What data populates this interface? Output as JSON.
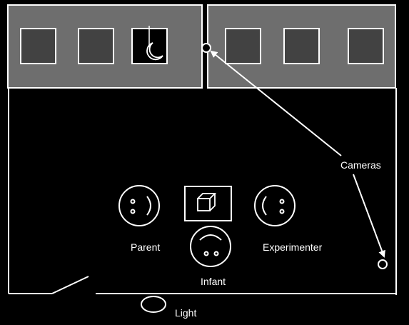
{
  "labels": {
    "cameras": "Cameras",
    "parent": "Parent",
    "infant": "Infant",
    "experimenter": "Experimenter",
    "light": "Light"
  },
  "colors": {
    "background": "#000000",
    "panel": "#6e6e6e",
    "monitor": "#424242",
    "line": "#ffffff"
  },
  "icons": {
    "monitor_with_stimulus": "crescent-moon-icon",
    "table_object": "cube-icon",
    "parent": "face-icon",
    "infant": "face-icon",
    "experimenter": "face-icon",
    "light": "oval-lamp-icon",
    "camera": "circle-camera-icon"
  }
}
